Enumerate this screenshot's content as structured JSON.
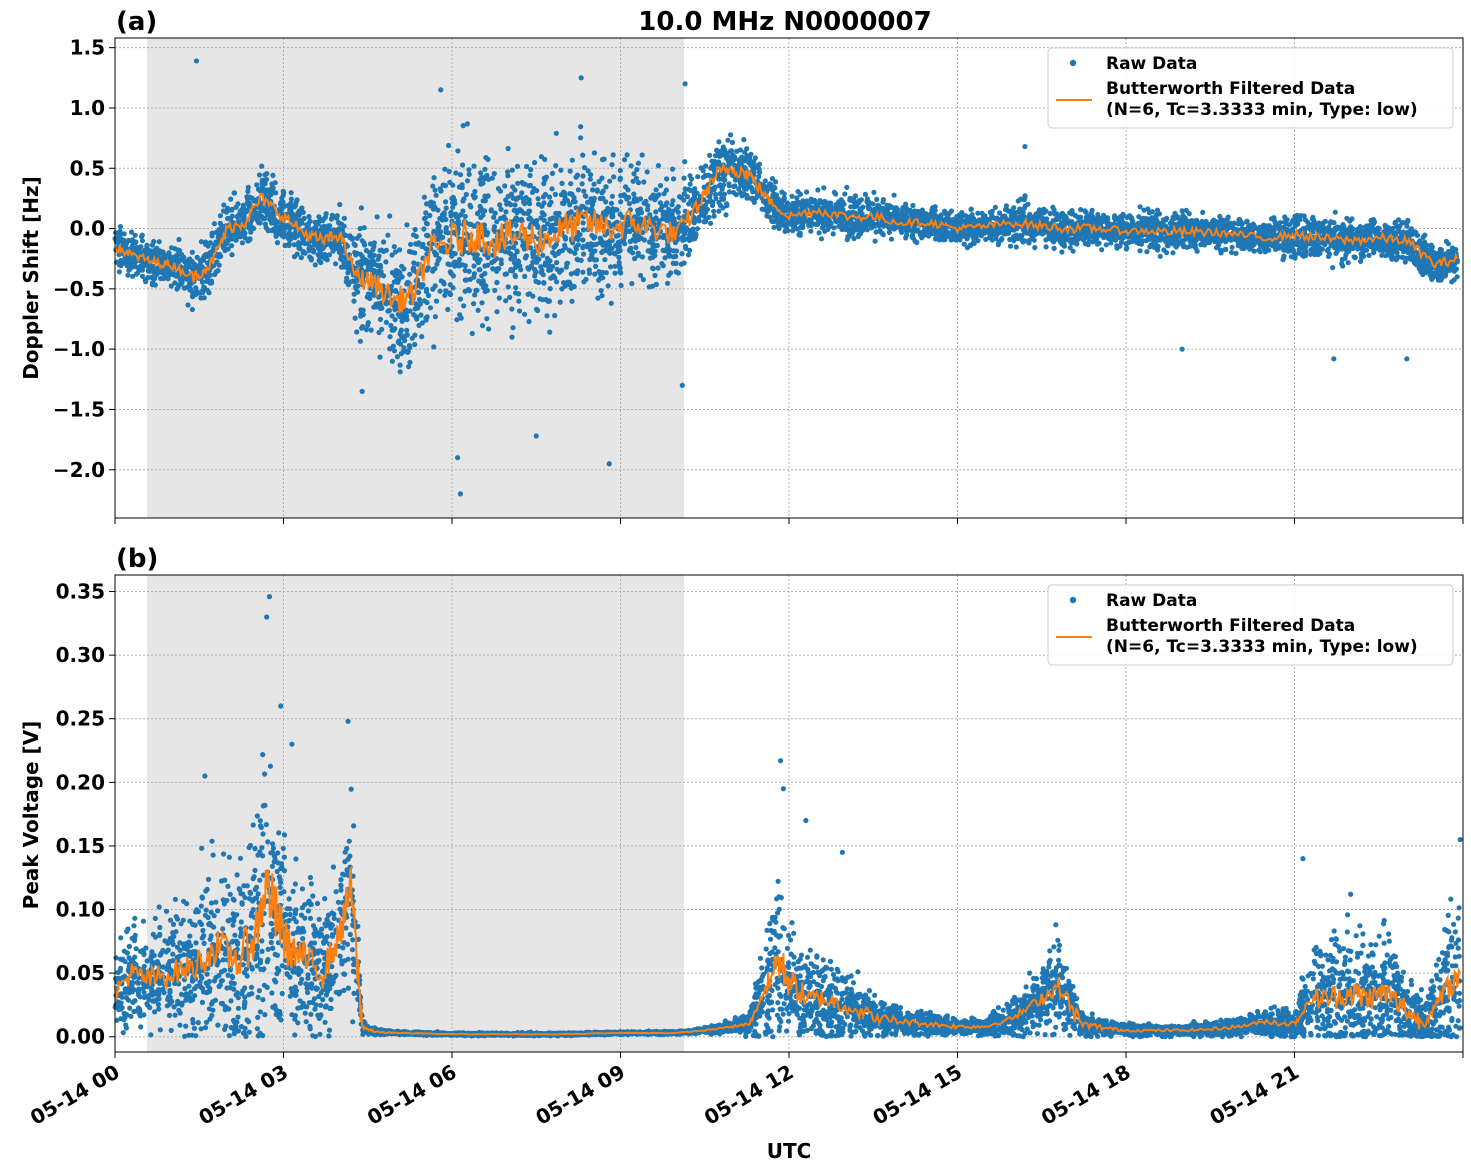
{
  "title": "10.0 MHz N0000007",
  "xlabel": "UTC",
  "x_tick_labels": [
    "05-14 00",
    "05-14 03",
    "05-14 06",
    "05-14 09",
    "05-14 12",
    "05-14 15",
    "05-14 18",
    "05-14 21"
  ],
  "colors": {
    "raw": "#1f77b4",
    "filtered": "#ff7f0e",
    "night_shade": "#e6e6e6",
    "grid": "#b0b0b0"
  },
  "chart_data": [
    {
      "type": "scatter",
      "panel_label": "(a)",
      "title": "10.0 MHz N0000007",
      "xlabel": "",
      "ylabel": "Doppler Shift [Hz]",
      "x_unit": "hours UTC on 05-14",
      "xlim": [
        0,
        24
      ],
      "ylim": [
        -2.4,
        1.58
      ],
      "y_ticks": [
        1.5,
        1.0,
        0.5,
        0.0,
        -0.5,
        -1.0,
        -1.5,
        -2.0
      ],
      "y_tick_labels": [
        "1.5",
        "1.0",
        "0.5",
        "0.0",
        "−0.5",
        "−1.0",
        "−1.5",
        "−2.0"
      ],
      "shaded_region": [
        0.57,
        10.13
      ],
      "grid": true,
      "legend_position": "top-right",
      "series": [
        {
          "name": "Raw Data",
          "style": "points",
          "x": [
            0.0,
            0.3,
            0.7,
            1.0,
            1.4,
            1.7,
            2.0,
            2.3,
            2.6,
            3.0,
            3.4,
            3.7,
            4.0,
            4.3,
            4.6,
            5.0,
            5.3,
            5.6,
            6.0,
            6.4,
            6.8,
            7.2,
            7.6,
            8.0,
            8.4,
            8.8,
            9.2,
            9.6,
            10.0,
            10.4,
            10.7,
            11.0,
            11.3,
            11.6,
            12.0,
            12.5,
            13.0,
            13.5,
            14.0,
            14.5,
            15.0,
            15.5,
            16.0,
            16.5,
            17.0,
            17.5,
            18.0,
            18.5,
            19.0,
            19.5,
            20.0,
            20.5,
            21.0,
            21.5,
            22.0,
            22.5,
            23.0,
            23.5,
            23.9
          ],
          "y": [
            -0.15,
            -0.22,
            -0.28,
            -0.3,
            -0.4,
            -0.3,
            0.0,
            0.05,
            0.25,
            0.1,
            -0.05,
            -0.1,
            -0.05,
            -0.4,
            -0.45,
            -0.6,
            -0.55,
            -0.2,
            -0.1,
            -0.05,
            -0.1,
            -0.05,
            -0.1,
            0.0,
            0.05,
            0.0,
            0.05,
            0.0,
            -0.05,
            0.2,
            0.45,
            0.5,
            0.45,
            0.25,
            0.1,
            0.15,
            0.1,
            0.1,
            0.05,
            0.05,
            0.0,
            0.02,
            0.05,
            0.02,
            0.0,
            0.0,
            -0.02,
            -0.02,
            -0.03,
            -0.03,
            -0.05,
            -0.08,
            -0.05,
            -0.08,
            -0.1,
            -0.08,
            -0.1,
            -0.3,
            -0.25
          ],
          "spread": [
            0.15,
            0.15,
            0.15,
            0.15,
            0.2,
            0.2,
            0.2,
            0.2,
            0.2,
            0.2,
            0.2,
            0.2,
            0.2,
            0.35,
            0.4,
            0.45,
            0.45,
            0.55,
            0.6,
            0.6,
            0.6,
            0.6,
            0.55,
            0.55,
            0.5,
            0.5,
            0.45,
            0.4,
            0.35,
            0.25,
            0.25,
            0.25,
            0.2,
            0.15,
            0.15,
            0.15,
            0.15,
            0.15,
            0.12,
            0.12,
            0.12,
            0.12,
            0.15,
            0.15,
            0.15,
            0.12,
            0.12,
            0.15,
            0.15,
            0.12,
            0.12,
            0.12,
            0.15,
            0.15,
            0.15,
            0.15,
            0.15,
            0.15,
            0.15
          ],
          "extremes": [
            [
              1.45,
              1.39
            ],
            [
              5.8,
              1.15
            ],
            [
              6.15,
              -2.2
            ],
            [
              6.1,
              -1.9
            ],
            [
              8.8,
              -1.95
            ],
            [
              7.5,
              -1.72
            ],
            [
              10.15,
              1.2
            ],
            [
              8.3,
              1.25
            ],
            [
              21.7,
              -1.08
            ],
            [
              16.2,
              0.68
            ],
            [
              19.0,
              -1.0
            ],
            [
              23.0,
              -1.08
            ],
            [
              4.4,
              -1.35
            ],
            [
              10.1,
              -1.3
            ]
          ]
        },
        {
          "name": "Butterworth Filtered Data\n(N=6, Tc=3.3333 min, Type: low)",
          "style": "line",
          "x": [
            0.0,
            0.3,
            0.7,
            1.0,
            1.4,
            1.7,
            2.0,
            2.3,
            2.6,
            3.0,
            3.4,
            3.7,
            4.0,
            4.3,
            4.6,
            5.0,
            5.3,
            5.6,
            6.0,
            6.4,
            6.8,
            7.2,
            7.6,
            8.0,
            8.4,
            8.8,
            9.2,
            9.6,
            10.0,
            10.4,
            10.7,
            11.0,
            11.3,
            11.6,
            12.0,
            12.5,
            13.0,
            13.5,
            14.0,
            14.5,
            15.0,
            15.5,
            16.0,
            16.5,
            17.0,
            17.5,
            18.0,
            18.5,
            19.0,
            19.5,
            20.0,
            20.5,
            21.0,
            21.5,
            22.0,
            22.5,
            23.0,
            23.5,
            23.9
          ],
          "y": [
            -0.15,
            -0.22,
            -0.28,
            -0.3,
            -0.4,
            -0.3,
            0.0,
            0.05,
            0.25,
            0.1,
            -0.05,
            -0.1,
            -0.05,
            -0.4,
            -0.45,
            -0.6,
            -0.55,
            -0.2,
            -0.1,
            -0.05,
            -0.1,
            -0.05,
            -0.1,
            0.0,
            0.05,
            0.0,
            0.05,
            0.0,
            -0.05,
            0.2,
            0.45,
            0.5,
            0.45,
            0.25,
            0.1,
            0.15,
            0.1,
            0.1,
            0.05,
            0.05,
            0.0,
            0.02,
            0.05,
            0.02,
            0.0,
            0.0,
            -0.02,
            -0.02,
            -0.03,
            -0.03,
            -0.05,
            -0.08,
            -0.05,
            -0.08,
            -0.1,
            -0.08,
            -0.1,
            -0.3,
            -0.25
          ]
        }
      ]
    },
    {
      "type": "scatter",
      "panel_label": "(b)",
      "xlabel": "UTC",
      "ylabel": "Peak Voltage [V]",
      "x_unit": "hours UTC on 05-14",
      "xlim": [
        0,
        24
      ],
      "ylim": [
        -0.012,
        0.363
      ],
      "y_ticks": [
        0.35,
        0.3,
        0.25,
        0.2,
        0.15,
        0.1,
        0.05,
        0.0
      ],
      "y_tick_labels": [
        "0.35",
        "0.30",
        "0.25",
        "0.20",
        "0.15",
        "0.10",
        "0.05",
        "0.00"
      ],
      "shaded_region": [
        0.57,
        10.13
      ],
      "grid": true,
      "legend_position": "top-right",
      "series": [
        {
          "name": "Raw Data",
          "style": "points",
          "x": [
            0.0,
            0.3,
            0.6,
            1.0,
            1.4,
            1.8,
            2.2,
            2.5,
            2.7,
            2.9,
            3.1,
            3.4,
            3.7,
            4.0,
            4.2,
            4.4,
            4.6,
            5.0,
            6.0,
            7.0,
            8.0,
            9.0,
            10.0,
            10.5,
            11.0,
            11.3,
            11.6,
            11.8,
            12.0,
            12.3,
            12.6,
            13.0,
            13.5,
            14.0,
            14.5,
            15.0,
            15.5,
            16.0,
            16.5,
            16.8,
            17.2,
            17.6,
            18.0,
            18.5,
            19.0,
            19.5,
            20.0,
            20.5,
            21.0,
            21.3,
            21.6,
            22.0,
            22.3,
            22.6,
            23.0,
            23.3,
            23.6,
            23.95
          ],
          "y": [
            0.035,
            0.05,
            0.045,
            0.05,
            0.055,
            0.07,
            0.06,
            0.08,
            0.12,
            0.09,
            0.07,
            0.06,
            0.05,
            0.08,
            0.12,
            0.008,
            0.004,
            0.003,
            0.002,
            0.002,
            0.002,
            0.003,
            0.003,
            0.005,
            0.008,
            0.01,
            0.04,
            0.06,
            0.045,
            0.03,
            0.03,
            0.025,
            0.015,
            0.012,
            0.01,
            0.008,
            0.008,
            0.015,
            0.03,
            0.04,
            0.01,
            0.007,
            0.005,
            0.005,
            0.005,
            0.006,
            0.008,
            0.012,
            0.01,
            0.03,
            0.03,
            0.035,
            0.03,
            0.035,
            0.02,
            0.01,
            0.03,
            0.05
          ],
          "spread": [
            0.03,
            0.035,
            0.04,
            0.04,
            0.05,
            0.06,
            0.07,
            0.08,
            0.1,
            0.08,
            0.06,
            0.05,
            0.05,
            0.06,
            0.07,
            0.005,
            0.002,
            0.001,
            0.001,
            0.001,
            0.001,
            0.001,
            0.001,
            0.002,
            0.005,
            0.008,
            0.04,
            0.06,
            0.04,
            0.03,
            0.03,
            0.025,
            0.015,
            0.01,
            0.008,
            0.006,
            0.006,
            0.015,
            0.025,
            0.03,
            0.01,
            0.005,
            0.004,
            0.004,
            0.004,
            0.005,
            0.006,
            0.01,
            0.01,
            0.035,
            0.04,
            0.045,
            0.04,
            0.045,
            0.03,
            0.015,
            0.04,
            0.06
          ],
          "extremes": [
            [
              2.75,
              0.346
            ],
            [
              2.7,
              0.33
            ],
            [
              2.95,
              0.26
            ],
            [
              4.15,
              0.248
            ],
            [
              3.15,
              0.23
            ],
            [
              11.85,
              0.217
            ],
            [
              11.9,
              0.195
            ],
            [
              12.3,
              0.17
            ],
            [
              23.95,
              0.155
            ],
            [
              21.15,
              0.14
            ],
            [
              12.95,
              0.145
            ],
            [
              16.75,
              0.088
            ],
            [
              1.6,
              0.205
            ],
            [
              22.0,
              0.112
            ]
          ]
        },
        {
          "name": "Butterworth Filtered Data\n(N=6, Tc=3.3333 min, Type: low)",
          "style": "line",
          "x": [
            0.0,
            0.3,
            0.6,
            1.0,
            1.4,
            1.8,
            2.2,
            2.5,
            2.7,
            2.9,
            3.1,
            3.4,
            3.7,
            4.0,
            4.2,
            4.4,
            4.6,
            5.0,
            6.0,
            7.0,
            8.0,
            9.0,
            10.0,
            10.5,
            11.0,
            11.3,
            11.6,
            11.8,
            12.0,
            12.3,
            12.6,
            13.0,
            13.5,
            14.0,
            14.5,
            15.0,
            15.5,
            16.0,
            16.5,
            16.8,
            17.2,
            17.6,
            18.0,
            18.5,
            19.0,
            19.5,
            20.0,
            20.5,
            21.0,
            21.3,
            21.6,
            22.0,
            22.3,
            22.6,
            23.0,
            23.3,
            23.6,
            23.95
          ],
          "y": [
            0.035,
            0.05,
            0.045,
            0.05,
            0.055,
            0.07,
            0.06,
            0.08,
            0.12,
            0.09,
            0.07,
            0.06,
            0.05,
            0.08,
            0.12,
            0.008,
            0.004,
            0.003,
            0.002,
            0.002,
            0.002,
            0.003,
            0.003,
            0.005,
            0.008,
            0.01,
            0.04,
            0.06,
            0.045,
            0.03,
            0.03,
            0.025,
            0.015,
            0.012,
            0.01,
            0.008,
            0.008,
            0.015,
            0.03,
            0.04,
            0.01,
            0.007,
            0.005,
            0.005,
            0.005,
            0.006,
            0.008,
            0.012,
            0.01,
            0.03,
            0.03,
            0.035,
            0.03,
            0.035,
            0.02,
            0.01,
            0.03,
            0.05
          ]
        }
      ]
    }
  ]
}
